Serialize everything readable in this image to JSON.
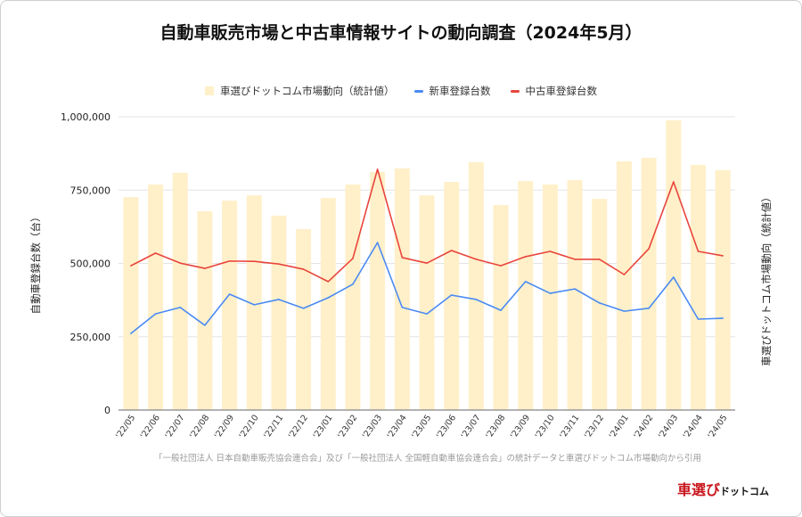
{
  "chart_data": {
    "type": "bar+line",
    "title": "自動車販売市場と中古車情報サイトの動向調査（2024年5月）",
    "ylabel": "自動車登録台数（台）",
    "y2label": "車選びドットコム市場動向（統計値）",
    "ylim": [
      0,
      1000000
    ],
    "yticks": [
      "0",
      "250,000",
      "500,000",
      "750,000",
      "1,000,000"
    ],
    "ytick_values": [
      0,
      250000,
      500000,
      750000,
      1000000
    ],
    "grid": true,
    "legend_position": "top",
    "categories": [
      "'22/05",
      "'22/06",
      "'22/07",
      "'22/08",
      "'22/09",
      "'22/10",
      "'22/11",
      "'22/12",
      "'23/01",
      "'23/02",
      "'23/03",
      "'23/04",
      "'23/05",
      "'23/06",
      "'23/07",
      "'23/08",
      "'23/09",
      "'23/10",
      "'23/11",
      "'23/12",
      "'24/01",
      "'24/02",
      "'24/03",
      "'24/04",
      "'24/05"
    ],
    "series": [
      {
        "name": "車選びドットコム市場動向（統計値）",
        "kind": "bar",
        "axis": "right",
        "color": "#fff0c9",
        "values": [
          726000,
          769000,
          809000,
          678000,
          714000,
          732000,
          663000,
          617000,
          723000,
          769000,
          812000,
          824000,
          732000,
          778000,
          845000,
          699000,
          781000,
          769000,
          784000,
          720000,
          848000,
          860000,
          988000,
          836000,
          818000
        ]
      },
      {
        "name": "新車登録台数",
        "kind": "line",
        "axis": "left",
        "color": "#4a8af4",
        "values": [
          261000,
          328000,
          350000,
          289000,
          395000,
          359000,
          377000,
          347000,
          383000,
          429000,
          571000,
          350000,
          328000,
          392000,
          377000,
          340000,
          438000,
          398000,
          413000,
          365000,
          337000,
          347000,
          453000,
          310000,
          313000
        ]
      },
      {
        "name": "中古車登録台数",
        "kind": "line",
        "axis": "left",
        "color": "#e8453c",
        "values": [
          492000,
          535000,
          501000,
          483000,
          508000,
          507000,
          498000,
          480000,
          438000,
          517000,
          821000,
          520000,
          501000,
          544000,
          514000,
          492000,
          523000,
          541000,
          514000,
          514000,
          462000,
          550000,
          778000,
          541000,
          526000
        ]
      }
    ]
  },
  "source_note": "「一般社団法人 日本自動車販売協会連合会」及び「一般社団法人 全国軽自動車協会連合会」の統計データと車選びドットコム市場動向から引用",
  "logo": {
    "part1": "車選び",
    "part2": "ドットコム"
  }
}
